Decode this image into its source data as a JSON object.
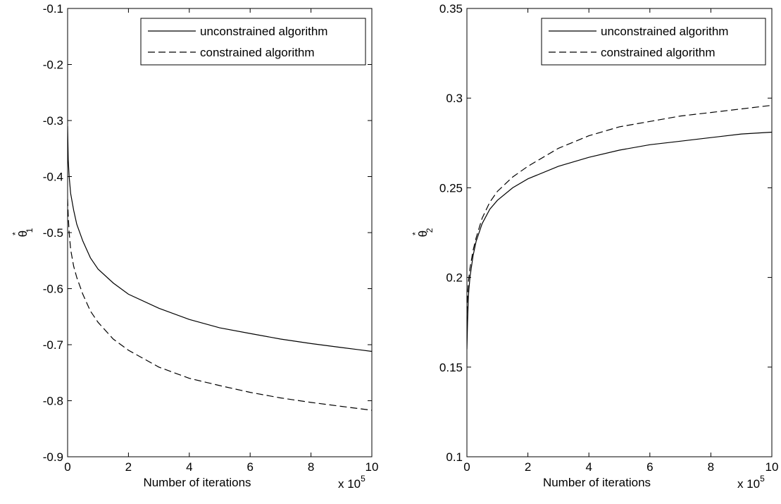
{
  "chart_data": [
    {
      "type": "line",
      "xlabel": "Number of iterations",
      "x_multiplier_label": "x 10",
      "x_multiplier_exp": "5",
      "ylabel_base": "θ",
      "ylabel_sub": "1",
      "ylabel_sup": "*",
      "xlim": [
        0,
        10
      ],
      "ylim": [
        -0.9,
        -0.1
      ],
      "x_ticks": [
        "0",
        "2",
        "4",
        "6",
        "8",
        "10"
      ],
      "y_ticks": [
        "-0.1",
        "-0.2",
        "-0.3",
        "-0.4",
        "-0.5",
        "-0.6",
        "-0.7",
        "-0.8",
        "-0.9"
      ],
      "legend_position": "top-right",
      "series": [
        {
          "name": "unconstrained algorithm",
          "style": "solid",
          "color": "#000000",
          "x": [
            0.0,
            0.02,
            0.05,
            0.1,
            0.2,
            0.3,
            0.5,
            0.75,
            1,
            1.5,
            2,
            3,
            4,
            5,
            6,
            7,
            8,
            9,
            10
          ],
          "y": [
            -0.31,
            -0.37,
            -0.4,
            -0.43,
            -0.46,
            -0.485,
            -0.515,
            -0.545,
            -0.565,
            -0.59,
            -0.61,
            -0.635,
            -0.655,
            -0.67,
            -0.68,
            -0.69,
            -0.698,
            -0.705,
            -0.712
          ]
        },
        {
          "name": "constrained algorithm",
          "style": "dashed",
          "color": "#000000",
          "x": [
            0.0,
            0.02,
            0.05,
            0.1,
            0.2,
            0.3,
            0.5,
            0.75,
            1,
            1.5,
            2,
            3,
            4,
            5,
            6,
            7,
            8,
            9,
            10
          ],
          "y": [
            -0.44,
            -0.47,
            -0.5,
            -0.53,
            -0.56,
            -0.58,
            -0.61,
            -0.64,
            -0.66,
            -0.69,
            -0.71,
            -0.74,
            -0.76,
            -0.773,
            -0.785,
            -0.795,
            -0.803,
            -0.81,
            -0.817
          ]
        }
      ]
    },
    {
      "type": "line",
      "xlabel": "Number of iterations",
      "x_multiplier_label": "x 10",
      "x_multiplier_exp": "5",
      "ylabel_base": "θ",
      "ylabel_sub": "2",
      "ylabel_sup": "*",
      "xlim": [
        0,
        10
      ],
      "ylim": [
        0.1,
        0.35
      ],
      "x_ticks": [
        "0",
        "2",
        "4",
        "6",
        "8",
        "10"
      ],
      "y_ticks": [
        "0.35",
        "0.3",
        "0.25",
        "0.2",
        "0.15",
        "0.1"
      ],
      "legend_position": "top-right",
      "series": [
        {
          "name": "unconstrained algorithm",
          "style": "solid",
          "color": "#000000",
          "x": [
            0.0,
            0.02,
            0.05,
            0.1,
            0.2,
            0.3,
            0.5,
            0.75,
            1,
            1.5,
            2,
            3,
            4,
            5,
            6,
            7,
            8,
            9,
            10
          ],
          "y": [
            0.16,
            0.175,
            0.19,
            0.2,
            0.212,
            0.22,
            0.23,
            0.238,
            0.243,
            0.25,
            0.255,
            0.262,
            0.267,
            0.271,
            0.274,
            0.276,
            0.278,
            0.28,
            0.281
          ]
        },
        {
          "name": "constrained algorithm",
          "style": "dashed",
          "color": "#000000",
          "x": [
            0.0,
            0.02,
            0.05,
            0.1,
            0.2,
            0.3,
            0.5,
            0.75,
            1,
            1.5,
            2,
            3,
            4,
            5,
            6,
            7,
            8,
            9,
            10
          ],
          "y": [
            0.18,
            0.19,
            0.198,
            0.205,
            0.215,
            0.222,
            0.233,
            0.242,
            0.248,
            0.256,
            0.262,
            0.272,
            0.279,
            0.284,
            0.287,
            0.29,
            0.292,
            0.294,
            0.296
          ]
        }
      ]
    }
  ]
}
